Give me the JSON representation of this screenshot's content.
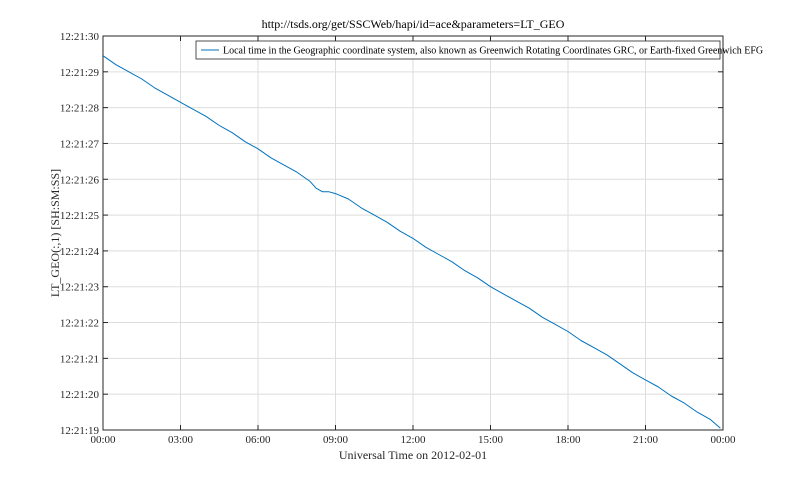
{
  "chart_data": {
    "type": "line",
    "title": "http://tsds.org/get/SSCWeb/hapi/id=ace&parameters=LT_GEO",
    "xlabel": "Universal Time on 2012-02-01",
    "ylabel": "LT_GEO(:,1) [SH:SM:SS]",
    "x_tick_labels": [
      "00:00",
      "03:00",
      "06:00",
      "09:00",
      "12:00",
      "15:00",
      "18:00",
      "21:00",
      "00:00"
    ],
    "y_tick_labels": [
      "12:21:19",
      "12:21:20",
      "12:21:21",
      "12:21:22",
      "12:21:23",
      "12:21:24",
      "12:21:25",
      "12:21:26",
      "12:21:27",
      "12:21:28",
      "12:21:29",
      "12:21:30"
    ],
    "xlim": [
      0,
      24
    ],
    "ylim": [
      19,
      30
    ],
    "grid": true,
    "legend_position": "top-right",
    "series": [
      {
        "name": "Local time in the Geographic coordinate system, also known as Greenwich Rotating Coordinates GRC, or Earth-fixed Greenwich EFG",
        "color": "#0072BD",
        "x": [
          0.0,
          0.5,
          1.0,
          1.5,
          2.0,
          2.5,
          3.0,
          3.5,
          4.0,
          4.5,
          5.0,
          5.5,
          6.0,
          6.5,
          7.0,
          7.5,
          8.0,
          8.25,
          8.5,
          8.75,
          9.0,
          9.5,
          10.0,
          10.5,
          11.0,
          11.5,
          12.0,
          12.5,
          13.0,
          13.5,
          14.0,
          14.5,
          15.0,
          15.5,
          16.0,
          16.5,
          17.0,
          17.5,
          18.0,
          18.5,
          19.0,
          19.5,
          20.0,
          20.5,
          21.0,
          21.5,
          22.0,
          22.5,
          23.0,
          23.5,
          23.9
        ],
        "y": [
          29.45,
          29.2,
          29.0,
          28.8,
          28.55,
          28.35,
          28.15,
          27.95,
          27.75,
          27.5,
          27.3,
          27.05,
          26.85,
          26.6,
          26.4,
          26.2,
          25.95,
          25.75,
          25.65,
          25.65,
          25.6,
          25.45,
          25.2,
          25.0,
          24.8,
          24.55,
          24.35,
          24.1,
          23.9,
          23.7,
          23.45,
          23.25,
          23.0,
          22.8,
          22.6,
          22.4,
          22.15,
          21.95,
          21.75,
          21.5,
          21.3,
          21.1,
          20.85,
          20.6,
          20.4,
          20.2,
          19.95,
          19.75,
          19.5,
          19.3,
          19.05
        ]
      }
    ]
  }
}
